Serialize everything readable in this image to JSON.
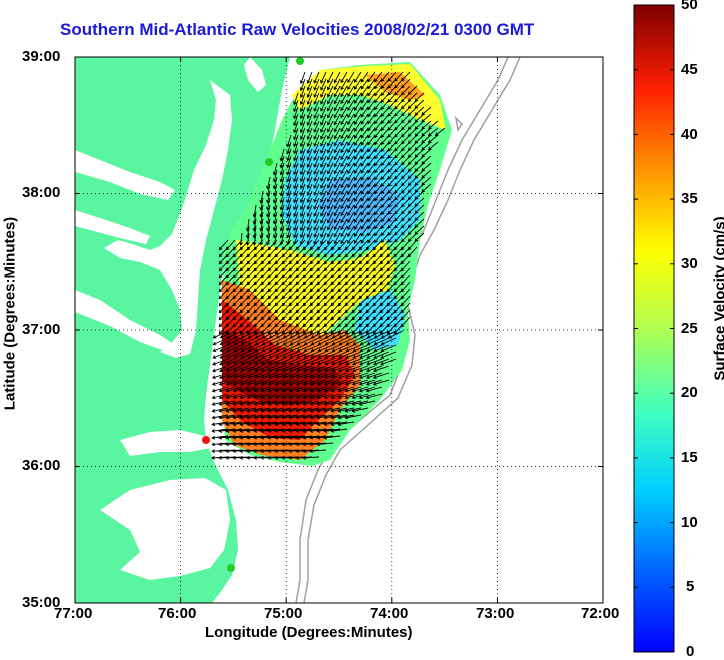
{
  "title": "Southern Mid-Atlantic Raw Velocities 2008/02/21 0300 GMT",
  "xlabel": "Longitude (Degrees:Minutes)",
  "ylabel": "Latitude (Degrees:Minutes)",
  "colorbar_label": "Surface Velocity (cm/s)",
  "x_ticks": [
    "77:00",
    "76:00",
    "75:00",
    "74:00",
    "73:00",
    "72:00"
  ],
  "y_ticks": [
    "39:00",
    "38:00",
    "37:00",
    "36:00",
    "35:00"
  ],
  "colorbar_ticks": [
    "50",
    "45",
    "40",
    "35",
    "30",
    "25",
    "20",
    "15",
    "10",
    "5",
    "0"
  ],
  "colors": {
    "land": "#5af5a0",
    "title": "#1a1ad8",
    "bathymetry": "#a0a0a0",
    "arrows": "#000000",
    "station_green": "#22cc22",
    "station_red": "#ee1111"
  },
  "chart_data": {
    "type": "heatmap",
    "x_range": [
      "77:00",
      "72:00"
    ],
    "y_range": [
      "35:00",
      "39:00"
    ],
    "colorbar_range": [
      0,
      50
    ],
    "colormap": "jet",
    "grid": "dotted",
    "overlay": "velocity vectors"
  }
}
